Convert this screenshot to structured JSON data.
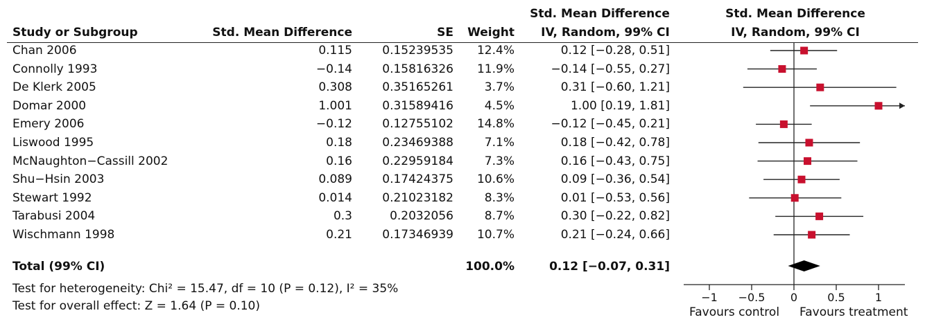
{
  "headers": {
    "study": "Study or Subgroup",
    "smd": "Std. Mean Difference",
    "se": "SE",
    "weight": "Weight",
    "ci_top": "Std. Mean Difference",
    "ci_bottom": "IV, Random, 99% CI",
    "plot_top": "Std. Mean Difference",
    "plot_bottom": "IV, Random, 99% CI"
  },
  "rows": [
    {
      "study": "Chan 2006",
      "smd": "0.115",
      "se": "0.15239535",
      "weight": "12.4%",
      "ci": "0.12 [−0.28, 0.51]"
    },
    {
      "study": "Connolly 1993",
      "smd": "−0.14",
      "se": "0.15816326",
      "weight": "11.9%",
      "ci": "−0.14 [−0.55, 0.27]"
    },
    {
      "study": "De Klerk 2005",
      "smd": "0.308",
      "se": "0.35165261",
      "weight": "3.7%",
      "ci": "0.31 [−0.60, 1.21]"
    },
    {
      "study": "Domar 2000",
      "smd": "1.001",
      "se": "0.31589416",
      "weight": "4.5%",
      "ci": "1.00 [0.19, 1.81]"
    },
    {
      "study": "Emery 2006",
      "smd": "−0.12",
      "se": "0.12755102",
      "weight": "14.8%",
      "ci": "−0.12 [−0.45, 0.21]"
    },
    {
      "study": "Liswood 1995",
      "smd": "0.18",
      "se": "0.23469388",
      "weight": "7.1%",
      "ci": "0.18 [−0.42, 0.78]"
    },
    {
      "study": "McNaughton−Cassill 2002",
      "smd": "0.16",
      "se": "0.22959184",
      "weight": "7.3%",
      "ci": "0.16 [−0.43, 0.75]"
    },
    {
      "study": "Shu−Hsin 2003",
      "smd": "0.089",
      "se": "0.17424375",
      "weight": "10.6%",
      "ci": "0.09 [−0.36, 0.54]"
    },
    {
      "study": "Stewart 1992",
      "smd": "0.014",
      "se": "0.21023182",
      "weight": "8.3%",
      "ci": "0.01 [−0.53, 0.56]"
    },
    {
      "study": "Tarabusi 2004",
      "smd": "0.3",
      "se": "0.2032056",
      "weight": "8.7%",
      "ci": "0.30 [−0.22, 0.82]"
    },
    {
      "study": "Wischmann 1998",
      "smd": "0.21",
      "se": "0.17346939",
      "weight": "10.7%",
      "ci": "0.21 [−0.24, 0.66]"
    }
  ],
  "total": {
    "label": "Total (99% CI)",
    "weight": "100.0%",
    "ci": "0.12 [−0.07, 0.31]"
  },
  "footnotes": {
    "heterogeneity": "Test for heterogeneity: Chi² = 15.47, df = 10 (P = 0.12), I² = 35%",
    "overall": "Test for overall effect: Z = 1.64 (P = 0.10)"
  },
  "axis": {
    "favours_left": "Favours control",
    "favours_right": "Favours treatment"
  },
  "colors": {
    "study_marker": "#c8102e",
    "total_diamond": "#000000",
    "lines": "#222222"
  },
  "chart_data": {
    "type": "forest",
    "xlim": [
      -1.0,
      1.33
    ],
    "ticks": [
      -1,
      -0.5,
      0,
      0.5,
      1
    ],
    "tick_labels": [
      "−1",
      "−0.5",
      "0",
      "0.5",
      "1"
    ],
    "studies": [
      {
        "name": "Chan 2006",
        "estimate": 0.12,
        "lower": -0.28,
        "upper": 0.51,
        "weight": 12.4
      },
      {
        "name": "Connolly 1993",
        "estimate": -0.14,
        "lower": -0.55,
        "upper": 0.27,
        "weight": 11.9
      },
      {
        "name": "De Klerk 2005",
        "estimate": 0.31,
        "lower": -0.6,
        "upper": 1.21,
        "weight": 3.7
      },
      {
        "name": "Domar 2000",
        "estimate": 1.0,
        "lower": 0.19,
        "upper": 1.81,
        "weight": 4.5
      },
      {
        "name": "Emery 2006",
        "estimate": -0.12,
        "lower": -0.45,
        "upper": 0.21,
        "weight": 14.8
      },
      {
        "name": "Liswood 1995",
        "estimate": 0.18,
        "lower": -0.42,
        "upper": 0.78,
        "weight": 7.1
      },
      {
        "name": "McNaughton−Cassill 2002",
        "estimate": 0.16,
        "lower": -0.43,
        "upper": 0.75,
        "weight": 7.3
      },
      {
        "name": "Shu−Hsin 2003",
        "estimate": 0.09,
        "lower": -0.36,
        "upper": 0.54,
        "weight": 10.6
      },
      {
        "name": "Stewart 1992",
        "estimate": 0.01,
        "lower": -0.53,
        "upper": 0.56,
        "weight": 8.3
      },
      {
        "name": "Tarabusi 2004",
        "estimate": 0.3,
        "lower": -0.22,
        "upper": 0.82,
        "weight": 8.7
      },
      {
        "name": "Wischmann 1998",
        "estimate": 0.21,
        "lower": -0.24,
        "upper": 0.66,
        "weight": 10.7
      }
    ],
    "total": {
      "estimate": 0.12,
      "lower": -0.07,
      "upper": 0.31
    }
  }
}
